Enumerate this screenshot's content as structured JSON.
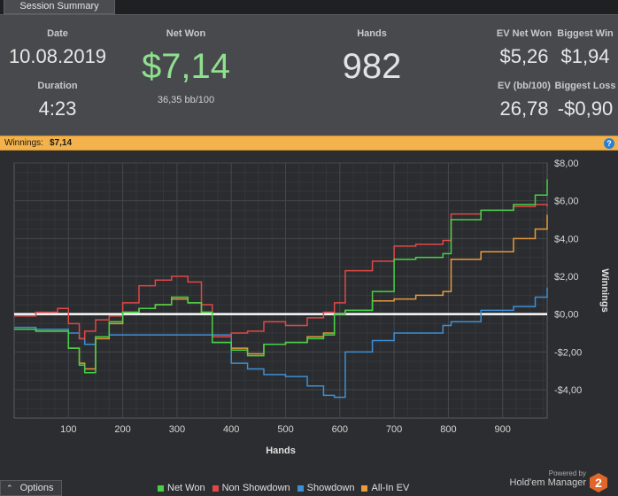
{
  "tab": {
    "label": "Session Summary"
  },
  "summary": {
    "date_label": "Date",
    "date_value": "10.08.2019",
    "duration_label": "Duration",
    "duration_value": "4:23",
    "net_won_label": "Net Won",
    "net_won_value": "$7,14",
    "net_won_sub": "36,35 bb/100",
    "hands_label": "Hands",
    "hands_value": "982",
    "ev_net_won_label": "EV Net Won",
    "ev_net_won_value": "$5,26",
    "biggest_win_label": "Biggest Win",
    "biggest_win_value": "$1,94",
    "ev_bb_label": "EV (bb/100)",
    "ev_bb_value": "26,78",
    "biggest_loss_label": "Biggest Loss",
    "biggest_loss_value": "-$0,90"
  },
  "winnings_bar": {
    "label": "Winnings:",
    "value": "$7,14",
    "help_icon": "question-icon"
  },
  "footer": {
    "options_label": "Options",
    "options_icon": "chevron-up-icon",
    "powered_by": "Powered by",
    "brand_name": "Hold'em Manager",
    "logo_text": "2"
  },
  "colors": {
    "net_won": "#47d147",
    "non_showdown": "#e04848",
    "showdown": "#3d8fd6",
    "all_in_ev": "#e89a3c",
    "net_won_text": "#8fe08f"
  },
  "chart_data": {
    "type": "line",
    "xlabel": "Hands",
    "ylabel": "Winnings",
    "xlim": [
      0,
      982
    ],
    "ylim": [
      -5.5,
      8
    ],
    "xticks": [
      100,
      200,
      300,
      400,
      500,
      600,
      700,
      800,
      900
    ],
    "xtick_labels": [
      "100",
      "200",
      "300",
      "400",
      "500",
      "600",
      "700",
      "800",
      "900"
    ],
    "yticks": [
      -4,
      -2,
      0,
      2,
      4,
      6,
      8
    ],
    "ytick_labels": [
      "-$4,00",
      "-$2,00",
      "$0,00",
      "$2,00",
      "$4,00",
      "$6,00",
      "$8,00"
    ],
    "grid": true,
    "legend": "bottom",
    "x": [
      0,
      40,
      80,
      100,
      120,
      130,
      150,
      175,
      200,
      230,
      260,
      290,
      320,
      345,
      365,
      400,
      430,
      460,
      500,
      540,
      570,
      590,
      610,
      660,
      700,
      740,
      790,
      805,
      860,
      920,
      960,
      982
    ],
    "series": [
      {
        "name": "Net Won",
        "values": [
          -0.8,
          -0.9,
          -0.9,
          -1.8,
          -2.7,
          -3.1,
          -1.2,
          -0.4,
          0.1,
          0.3,
          0.5,
          0.9,
          0.6,
          0.1,
          -1.5,
          -1.9,
          -2.2,
          -1.6,
          -1.5,
          -1.3,
          -1.1,
          0,
          0.2,
          1.2,
          2.9,
          3.0,
          3.2,
          5.0,
          5.5,
          5.8,
          6.3,
          7.14
        ]
      },
      {
        "name": "Non Showdown",
        "values": [
          -0.1,
          0.1,
          0.3,
          -0.5,
          -1.3,
          -0.9,
          -0.3,
          -0.1,
          0.6,
          1.5,
          1.8,
          2.0,
          1.7,
          0.5,
          -1.2,
          -1.0,
          -0.9,
          -0.4,
          -0.6,
          -0.2,
          0.1,
          0.6,
          2.3,
          2.8,
          3.6,
          3.7,
          3.9,
          5.3,
          5.5,
          5.7,
          5.8,
          5.7
        ]
      },
      {
        "name": "Showdown",
        "values": [
          -0.7,
          -0.8,
          -0.8,
          -1.0,
          -1.3,
          -1.6,
          -1.2,
          -1.1,
          -1.1,
          -1.1,
          -1.1,
          -1.1,
          -1.1,
          -1.1,
          -1.1,
          -2.6,
          -2.9,
          -3.2,
          -3.3,
          -3.8,
          -4.3,
          -4.4,
          -2.0,
          -1.4,
          -1.0,
          -1.0,
          -0.6,
          -0.4,
          0.2,
          0.4,
          0.9,
          1.4
        ]
      },
      {
        "name": "All-In EV",
        "values": [
          -0.8,
          -0.9,
          -0.9,
          -1.8,
          -2.6,
          -2.9,
          -1.3,
          -0.5,
          0.1,
          0.3,
          0.5,
          0.8,
          0.6,
          0.1,
          -1.5,
          -1.8,
          -2.1,
          -1.6,
          -1.5,
          -1.2,
          -1.0,
          0,
          0.2,
          0.7,
          0.8,
          1.0,
          1.2,
          2.9,
          3.3,
          4.0,
          4.5,
          5.26
        ]
      }
    ]
  }
}
